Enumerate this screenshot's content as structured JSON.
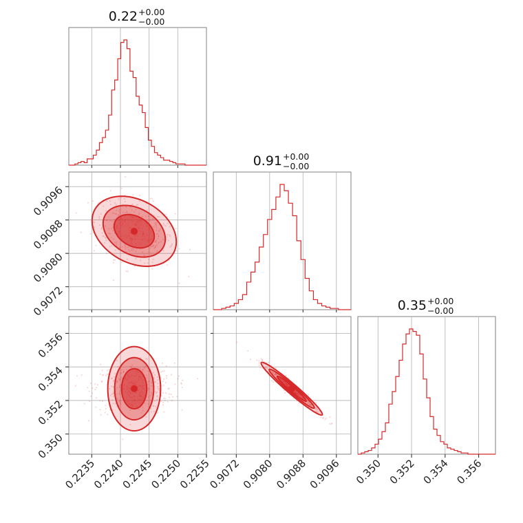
{
  "colors": {
    "series": "#d62728",
    "grid": "#b0b0b0",
    "frame": "#808080"
  },
  "chart_data": [
    {
      "type": "histogram",
      "panel": "p00",
      "title": {
        "value": "0.22",
        "upper": "+0.00",
        "lower": "−0.00"
      },
      "xlim": [
        0.2231,
        0.2255
      ],
      "x": [
        0.2233,
        0.22335,
        0.2234,
        0.22345,
        0.2235,
        0.22355,
        0.2236,
        0.22365,
        0.2237,
        0.22375,
        0.2238,
        0.22385,
        0.2239,
        0.22395,
        0.224,
        0.22405,
        0.2241,
        0.22415,
        0.2242,
        0.22425,
        0.2243,
        0.22435,
        0.2244,
        0.22445,
        0.2245,
        0.22455,
        0.2246,
        0.22465,
        0.2247,
        0.22475,
        0.2248,
        0.22485,
        0.2249,
        0.22495,
        0.225,
        0.22505,
        0.2251,
        0.22515,
        0.2252,
        0.22525,
        0.2253,
        0.22535,
        0.2254,
        0.22545,
        0.2255
      ],
      "values": [
        0,
        0,
        1,
        2,
        3,
        2,
        5,
        5,
        8,
        12,
        18,
        22,
        28,
        40,
        60,
        68,
        85,
        98,
        100,
        93,
        75,
        70,
        55,
        48,
        42,
        30,
        20,
        15,
        10,
        8,
        6,
        4,
        4,
        3,
        2,
        1,
        1,
        1,
        0,
        0,
        0,
        0,
        0,
        0,
        0
      ],
      "gridlines": [
        0.2235,
        0.224,
        0.2245,
        0.225
      ]
    },
    {
      "type": "histogram",
      "panel": "p11",
      "title": {
        "value": "0.91",
        "upper": "+0.00",
        "lower": "−0.00"
      },
      "xlim": [
        0.90665,
        0.90995
      ],
      "x": [
        0.9067,
        0.9068,
        0.9069,
        0.907,
        0.9071,
        0.9072,
        0.9073,
        0.9074,
        0.9075,
        0.9076,
        0.9077,
        0.9078,
        0.9079,
        0.908,
        0.9081,
        0.9082,
        0.9083,
        0.9084,
        0.9085,
        0.9086,
        0.9087,
        0.9088,
        0.9089,
        0.909,
        0.9091,
        0.9092,
        0.9093,
        0.9094,
        0.9095,
        0.9096,
        0.9097,
        0.9098,
        0.9099
      ],
      "values": [
        0,
        0,
        1,
        2,
        3,
        5,
        8,
        12,
        22,
        30,
        38,
        50,
        60,
        72,
        80,
        90,
        100,
        95,
        85,
        75,
        55,
        40,
        25,
        15,
        8,
        5,
        3,
        2,
        1,
        1,
        0,
        0,
        0
      ],
      "gridlines": [
        0.9072,
        0.908,
        0.9088,
        0.9096
      ],
      "xticks": [
        "0.9072",
        "0.9080",
        "0.9088",
        "0.9096"
      ]
    },
    {
      "type": "histogram",
      "panel": "p22",
      "title": {
        "value": "0.35",
        "upper": "+0.00",
        "lower": "−0.00"
      },
      "xlim": [
        0.3488,
        0.357
      ],
      "x": [
        0.349,
        0.3492,
        0.3494,
        0.3496,
        0.3498,
        0.35,
        0.3502,
        0.3504,
        0.3506,
        0.3508,
        0.351,
        0.3512,
        0.3514,
        0.3516,
        0.3518,
        0.352,
        0.3522,
        0.3524,
        0.3526,
        0.3528,
        0.353,
        0.3532,
        0.3534,
        0.3536,
        0.3538,
        0.354,
        0.3542,
        0.3544,
        0.3546,
        0.3548,
        0.355,
        0.3552,
        0.3554,
        0.3556,
        0.3558,
        0.356,
        0.3562,
        0.3564,
        0.3566,
        0.3568
      ],
      "values": [
        0,
        1,
        2,
        3,
        5,
        8,
        12,
        18,
        25,
        40,
        50,
        62,
        75,
        88,
        96,
        100,
        98,
        95,
        80,
        60,
        45,
        30,
        20,
        15,
        10,
        8,
        5,
        4,
        3,
        2,
        1,
        1,
        0,
        0,
        0,
        0,
        0,
        0,
        0,
        0
      ],
      "gridlines": [
        0.35,
        0.352,
        0.354,
        0.356
      ],
      "xticks": [
        "0.350",
        "0.352",
        "0.354",
        "0.356"
      ]
    },
    {
      "type": "contour-scatter",
      "panel": "p10",
      "xlim": [
        0.2231,
        0.2255
      ],
      "ylim": [
        0.90665,
        0.90995
      ],
      "xticks": [
        "0.2235",
        "0.2240",
        "0.2245",
        "0.2250",
        "0.2255"
      ],
      "yticks": [
        "0.9072",
        "0.9080",
        "0.9088",
        "0.9096"
      ],
      "center": [
        0.22424,
        0.90853
      ],
      "spread": [
        0.00035,
        0.0004
      ],
      "correlation": -0.3
    },
    {
      "type": "contour-scatter",
      "panel": "p20",
      "xlim": [
        0.2231,
        0.2255
      ],
      "ylim": [
        0.3488,
        0.357
      ],
      "yticks": [
        "0.350",
        "0.352",
        "0.354",
        "0.356"
      ],
      "center": [
        0.22424,
        0.3527
      ],
      "spread": [
        0.00035,
        0.00075
      ],
      "correlation": 0.0
    },
    {
      "type": "contour-scatter",
      "panel": "p21",
      "xlim": [
        0.90665,
        0.90995
      ],
      "ylim": [
        0.3488,
        0.357
      ],
      "center": [
        0.90853,
        0.3527
      ],
      "spread": [
        0.00035,
        0.00075
      ],
      "correlation": -0.97
    }
  ]
}
